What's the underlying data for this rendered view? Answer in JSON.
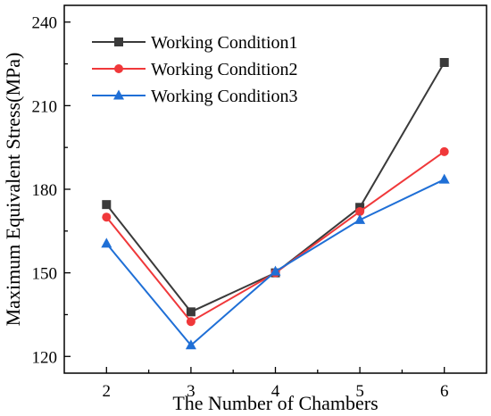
{
  "chart_data": {
    "type": "line",
    "title": "",
    "xlabel": "The Number of Chambers",
    "ylabel": "Maximum Equivalent Stress(MPa)",
    "x": [
      2,
      3,
      4,
      5,
      6
    ],
    "xlim": [
      1.5,
      6.5
    ],
    "ylim": [
      114,
      246
    ],
    "xticks": [
      "2",
      "3",
      "4",
      "5",
      "6"
    ],
    "yticks": [
      120,
      150,
      180,
      210,
      240
    ],
    "grid": false,
    "legend_position": "top-left",
    "series": [
      {
        "name": "Working Condition1",
        "values": [
          174.5,
          136,
          150,
          173.5,
          225.5
        ],
        "color": "#3a3a3a",
        "marker": "square"
      },
      {
        "name": "Working Condition2",
        "values": [
          170,
          132.5,
          150,
          172,
          193.5
        ],
        "color": "#f0383a",
        "marker": "circle"
      },
      {
        "name": "Working Condition3",
        "values": [
          160.5,
          124,
          150.5,
          169,
          183.5
        ],
        "color": "#1f6fd6",
        "marker": "triangle"
      }
    ]
  }
}
